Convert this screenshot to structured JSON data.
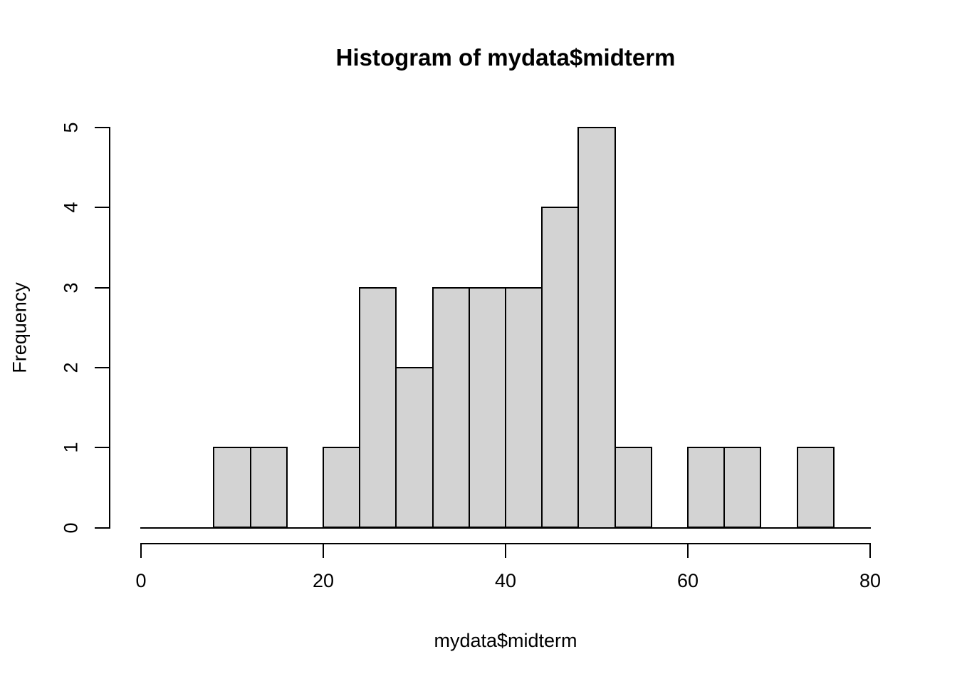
{
  "chart_data": {
    "type": "bar",
    "variant": "histogram",
    "title": "Histogram of mydata$midterm",
    "xlabel": "mydata$midterm",
    "ylabel": "Frequency",
    "bin_edges": [
      8,
      12,
      16,
      20,
      24,
      28,
      32,
      36,
      40,
      44,
      48,
      52,
      56,
      60,
      64,
      68,
      72,
      76
    ],
    "counts": [
      1,
      1,
      0,
      1,
      3,
      2,
      3,
      3,
      3,
      4,
      5,
      1,
      0,
      1,
      1,
      0,
      1
    ],
    "x_ticks": [
      0,
      20,
      40,
      60,
      80
    ],
    "y_ticks": [
      0,
      1,
      2,
      3,
      4,
      5
    ],
    "xlim": [
      0,
      80
    ],
    "ylim": [
      0,
      5
    ],
    "grid": false,
    "legend_position": "none",
    "bar_fill": "#d3d3d3",
    "bar_border": "#000000",
    "axis_color": "#000000",
    "background_color": "#ffffff"
  }
}
